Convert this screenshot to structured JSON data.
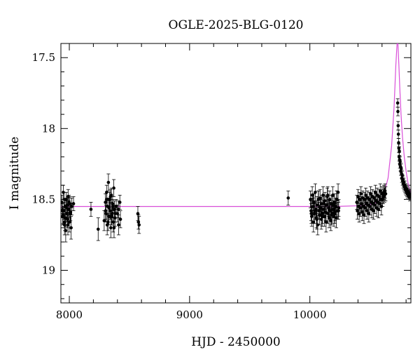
{
  "chart_data": {
    "type": "scatter",
    "title": "OGLE-2025-BLG-0120",
    "xlabel": "HJD - 2450000",
    "ylabel": "I magnitude",
    "xlim": [
      7930,
      10840
    ],
    "ylim": [
      19.23,
      17.4
    ],
    "y_inverted": true,
    "grid": false,
    "x_ticks": [
      8000,
      9000,
      10000
    ],
    "y_ticks": [
      17.5,
      18,
      18.5,
      19
    ],
    "colors": {
      "data": "#000000",
      "model": "#d94fd9"
    },
    "baseline_mag": 18.55,
    "model": {
      "name": "",
      "x": [
        7930,
        9000,
        9800,
        10200,
        10400,
        10500,
        10560,
        10610,
        10650,
        10680,
        10700,
        10715,
        10725,
        10732,
        10740,
        10748,
        10758,
        10770,
        10785,
        10800,
        10815,
        10830,
        10840
      ],
      "y": [
        18.55,
        18.55,
        18.55,
        18.55,
        18.545,
        18.535,
        18.52,
        18.48,
        18.35,
        18.12,
        17.85,
        17.55,
        17.4,
        17.4,
        17.55,
        17.72,
        17.9,
        18.06,
        18.2,
        18.3,
        18.38,
        18.43,
        18.46
      ]
    },
    "series": [
      {
        "x": [
          7938,
          7945,
          7950,
          7955,
          7960,
          7965,
          7970,
          7975,
          7980,
          7985,
          7990,
          7995,
          8000,
          8005,
          8010,
          8015,
          8020,
          8035,
          7948,
          7958,
          7968,
          7978,
          7988,
          7998,
          8008,
          7942,
          7962,
          7982
        ],
        "y": [
          18.52,
          18.62,
          18.45,
          18.58,
          18.68,
          18.55,
          18.72,
          18.5,
          18.6,
          18.64,
          18.48,
          18.57,
          18.66,
          18.53,
          18.59,
          18.7,
          18.55,
          18.53,
          18.61,
          18.5,
          18.63,
          18.56,
          18.68,
          18.52,
          18.6,
          18.58,
          18.66,
          18.54
        ],
        "err": [
          0.05,
          0.06,
          0.05,
          0.06,
          0.07,
          0.05,
          0.08,
          0.05,
          0.06,
          0.06,
          0.05,
          0.06,
          0.07,
          0.05,
          0.06,
          0.08,
          0.06,
          0.05,
          0.06,
          0.05,
          0.06,
          0.05,
          0.07,
          0.05,
          0.06,
          0.05,
          0.06,
          0.05
        ]
      },
      {
        "x": [
          8180,
          8240,
          8290,
          8300,
          8305,
          8310,
          8315,
          8320,
          8325,
          8330,
          8335,
          8340,
          8345,
          8350,
          8355,
          8360,
          8365,
          8370,
          8375,
          8380,
          8390,
          8400,
          8410,
          8420,
          8425,
          8302,
          8312,
          8322,
          8332,
          8342,
          8352,
          8362,
          8372,
          8382,
          8408
        ],
        "y": [
          18.57,
          18.71,
          18.65,
          18.52,
          18.6,
          18.45,
          18.68,
          18.55,
          18.38,
          18.62,
          18.5,
          18.58,
          18.7,
          18.47,
          18.6,
          18.53,
          18.66,
          18.42,
          18.57,
          18.63,
          18.55,
          18.6,
          18.68,
          18.52,
          18.64,
          18.58,
          18.5,
          18.66,
          18.56,
          18.48,
          18.62,
          18.55,
          18.7,
          18.6,
          18.57
        ],
        "err": [
          0.05,
          0.08,
          0.07,
          0.06,
          0.06,
          0.05,
          0.07,
          0.06,
          0.06,
          0.06,
          0.05,
          0.06,
          0.07,
          0.05,
          0.06,
          0.05,
          0.07,
          0.06,
          0.06,
          0.06,
          0.05,
          0.06,
          0.07,
          0.05,
          0.06,
          0.06,
          0.05,
          0.06,
          0.05,
          0.05,
          0.06,
          0.05,
          0.07,
          0.06,
          0.06
        ]
      },
      {
        "x": [
          8570,
          8575,
          8580
        ],
        "y": [
          18.6,
          18.66,
          18.68
        ],
        "err": [
          0.05,
          0.05,
          0.06
        ]
      },
      {
        "x": [
          9820
        ],
        "y": [
          18.49
        ],
        "err": [
          0.05
        ]
      },
      {
        "x": [
          10005,
          10010,
          10015,
          10020,
          10025,
          10030,
          10035,
          10040,
          10045,
          10050,
          10055,
          10060,
          10065,
          10070,
          10075,
          10080,
          10085,
          10090,
          10095,
          10100,
          10105,
          10110,
          10115,
          10120,
          10125,
          10130,
          10135,
          10140,
          10145,
          10150,
          10155,
          10160,
          10165,
          10170,
          10175,
          10180,
          10185,
          10190,
          10195,
          10200,
          10205,
          10210,
          10215,
          10220,
          10225,
          10230,
          10235,
          10240,
          10012,
          10028,
          10042,
          10058,
          10072,
          10088,
          10102,
          10118,
          10132,
          10148,
          10162,
          10178,
          10192,
          10208,
          10222,
          10238
        ],
        "y": [
          18.5,
          18.58,
          18.62,
          18.47,
          18.55,
          18.66,
          18.52,
          18.6,
          18.45,
          18.57,
          18.63,
          18.54,
          18.68,
          18.5,
          18.58,
          18.61,
          18.49,
          18.56,
          18.64,
          18.53,
          18.6,
          18.47,
          18.57,
          18.62,
          18.51,
          18.59,
          18.66,
          18.54,
          18.48,
          18.6,
          18.56,
          18.63,
          18.5,
          18.58,
          18.65,
          18.53,
          18.6,
          18.47,
          18.57,
          18.62,
          18.52,
          18.59,
          18.55,
          18.63,
          18.5,
          18.58,
          18.45,
          18.56,
          18.6,
          18.52,
          18.58,
          18.64,
          18.5,
          18.56,
          18.62,
          18.53,
          18.59,
          18.47,
          18.57,
          18.61,
          18.54,
          18.6,
          18.5,
          18.58
        ],
        "err": [
          0.06,
          0.07,
          0.07,
          0.06,
          0.06,
          0.07,
          0.06,
          0.07,
          0.06,
          0.06,
          0.07,
          0.06,
          0.07,
          0.06,
          0.06,
          0.07,
          0.06,
          0.06,
          0.07,
          0.06,
          0.07,
          0.06,
          0.06,
          0.07,
          0.06,
          0.06,
          0.07,
          0.06,
          0.06,
          0.07,
          0.06,
          0.07,
          0.06,
          0.06,
          0.07,
          0.06,
          0.07,
          0.06,
          0.06,
          0.07,
          0.06,
          0.06,
          0.06,
          0.07,
          0.06,
          0.06,
          0.06,
          0.06,
          0.07,
          0.06,
          0.06,
          0.07,
          0.06,
          0.06,
          0.07,
          0.06,
          0.06,
          0.06,
          0.06,
          0.07,
          0.06,
          0.07,
          0.06,
          0.06
        ]
      },
      {
        "x": [
          10390,
          10395,
          10400,
          10405,
          10410,
          10415,
          10420,
          10425,
          10430,
          10435,
          10440,
          10445,
          10450,
          10455,
          10460,
          10465,
          10470,
          10475,
          10480,
          10485,
          10490,
          10495,
          10500,
          10505,
          10510,
          10515,
          10520,
          10525,
          10530,
          10535,
          10540,
          10545,
          10550,
          10555,
          10560,
          10565,
          10570,
          10575,
          10580,
          10585,
          10590,
          10595,
          10600,
          10605,
          10610,
          10615,
          10620,
          10625,
          10630
        ],
        "y": [
          18.52,
          18.58,
          18.48,
          18.55,
          18.6,
          18.5,
          18.56,
          18.46,
          18.53,
          18.59,
          18.49,
          18.55,
          18.61,
          18.5,
          18.56,
          18.47,
          18.53,
          18.58,
          18.49,
          18.54,
          18.6,
          18.5,
          18.55,
          18.46,
          18.52,
          18.57,
          18.48,
          18.53,
          18.58,
          18.49,
          18.54,
          18.45,
          18.51,
          18.56,
          18.47,
          18.52,
          18.57,
          18.48,
          18.53,
          18.44,
          18.5,
          18.55,
          18.46,
          18.5,
          18.48,
          18.45,
          18.47,
          18.44,
          18.46
        ],
        "err": [
          0.05,
          0.06,
          0.05,
          0.06,
          0.06,
          0.05,
          0.06,
          0.05,
          0.05,
          0.06,
          0.05,
          0.06,
          0.06,
          0.05,
          0.06,
          0.05,
          0.05,
          0.06,
          0.05,
          0.06,
          0.06,
          0.05,
          0.06,
          0.05,
          0.05,
          0.06,
          0.05,
          0.05,
          0.06,
          0.05,
          0.06,
          0.05,
          0.05,
          0.06,
          0.05,
          0.05,
          0.06,
          0.05,
          0.05,
          0.05,
          0.05,
          0.06,
          0.05,
          0.05,
          0.05,
          0.05,
          0.05,
          0.05,
          0.05
        ]
      },
      {
        "x": [
          10730,
          10732,
          10734,
          10736,
          10738,
          10740,
          10742,
          10744,
          10746,
          10748,
          10750,
          10753,
          10756,
          10759,
          10762,
          10765,
          10768,
          10771,
          10774,
          10777,
          10780,
          10783,
          10786,
          10789,
          10792,
          10795,
          10798,
          10801,
          10804,
          10807,
          10810,
          10813,
          10816,
          10819,
          10822,
          10825,
          10828,
          10831,
          10834
        ],
        "y": [
          17.82,
          17.88,
          17.98,
          18.04,
          18.1,
          18.14,
          18.2,
          18.16,
          18.22,
          18.25,
          18.23,
          18.27,
          18.3,
          18.28,
          18.32,
          18.35,
          18.33,
          18.37,
          18.36,
          18.39,
          18.38,
          18.4,
          18.41,
          18.4,
          18.42,
          18.43,
          18.42,
          18.44,
          18.43,
          18.45,
          18.44,
          18.46,
          18.45,
          18.47,
          18.46,
          18.47,
          18.46,
          18.48,
          18.47
        ],
        "err": [
          0.03,
          0.03,
          0.03,
          0.03,
          0.03,
          0.03,
          0.03,
          0.03,
          0.03,
          0.03,
          0.03,
          0.03,
          0.03,
          0.03,
          0.03,
          0.03,
          0.03,
          0.03,
          0.03,
          0.03,
          0.03,
          0.03,
          0.03,
          0.03,
          0.03,
          0.03,
          0.03,
          0.03,
          0.03,
          0.03,
          0.03,
          0.03,
          0.03,
          0.03,
          0.03,
          0.03,
          0.03,
          0.03,
          0.03
        ]
      }
    ]
  }
}
